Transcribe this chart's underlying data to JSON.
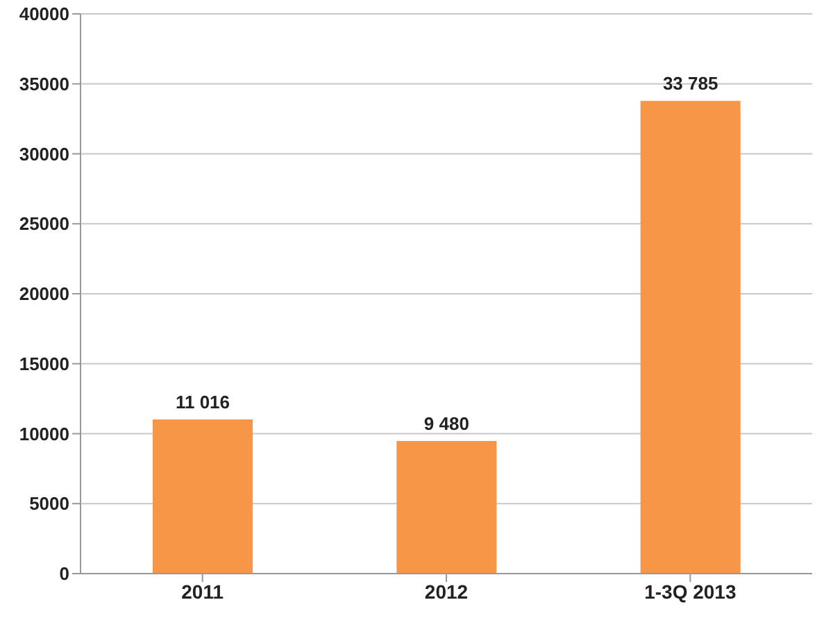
{
  "chart_data": {
    "type": "bar",
    "categories": [
      "2011",
      "2012",
      "1-3Q 2013"
    ],
    "values": [
      11016,
      9480,
      33785
    ],
    "value_labels": [
      "11 016",
      "9 480",
      "33 785"
    ],
    "color": "#f79646",
    "ylim": [
      0,
      40000
    ],
    "yticks": [
      0,
      5000,
      10000,
      15000,
      20000,
      25000,
      30000,
      35000,
      40000
    ],
    "grid": "y",
    "legend": false
  }
}
